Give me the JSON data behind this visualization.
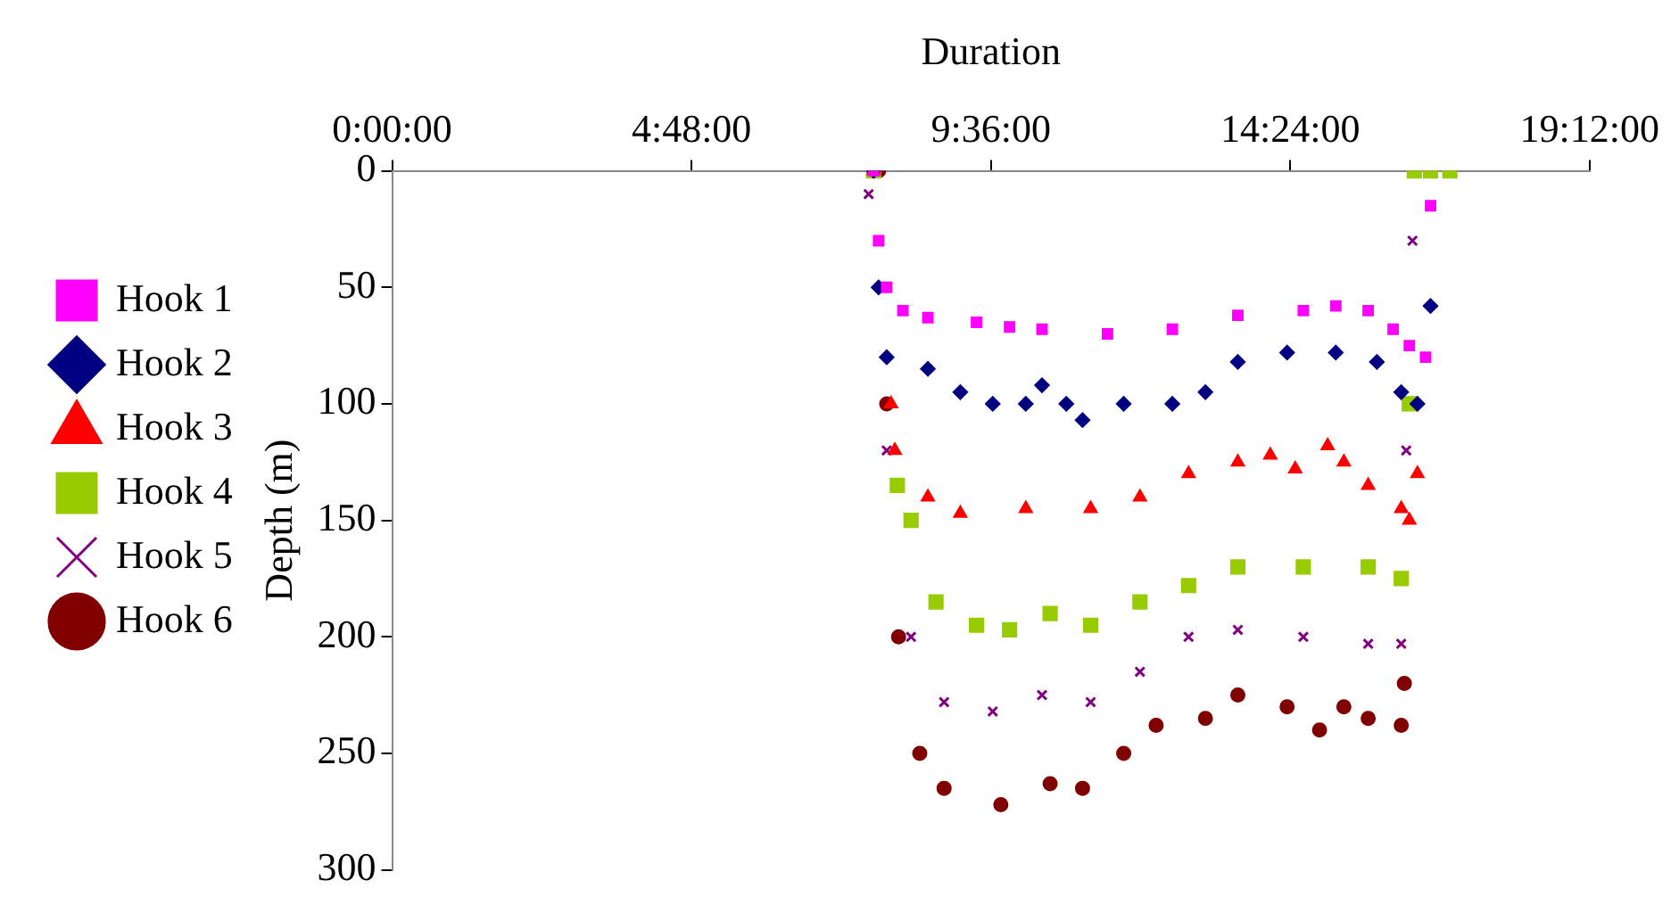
{
  "chart_data": {
    "type": "scatter",
    "xlabel": "Duration",
    "ylabel": "Depth (m)",
    "xlim": [
      0,
      19.2
    ],
    "xticks": [
      {
        "value": 0,
        "label": "0:00:00"
      },
      {
        "value": 4.8,
        "label": "4:48:00"
      },
      {
        "value": 9.6,
        "label": "9:36:00"
      },
      {
        "value": 14.4,
        "label": "14:24:00"
      },
      {
        "value": 19.2,
        "label": "19:12:00"
      }
    ],
    "ylim": [
      300,
      0
    ],
    "yticks": [
      0,
      50,
      100,
      150,
      200,
      250,
      300
    ],
    "grid": false,
    "legend": "left",
    "series": [
      {
        "name": "Hook 1",
        "color": "#ff00ff",
        "marker": "square",
        "x": [
          7.72,
          7.8,
          7.93,
          8.19,
          8.59,
          9.37,
          9.9,
          10.42,
          11.47,
          12.51,
          13.56,
          14.61,
          15.13,
          15.65,
          16.05,
          16.31,
          16.57,
          16.65
        ],
        "values": [
          0,
          30,
          50,
          60,
          63,
          65,
          67,
          68,
          70,
          68,
          62,
          60,
          58,
          60,
          68,
          75,
          80,
          15
        ]
      },
      {
        "name": "Hook 2",
        "color": "#000080",
        "marker": "diamond",
        "x": [
          7.72,
          7.8,
          7.93,
          8.59,
          9.11,
          9.63,
          10.16,
          10.42,
          10.81,
          11.07,
          11.73,
          12.51,
          13.04,
          13.56,
          14.35,
          15.13,
          15.79,
          16.18,
          16.44,
          16.65
        ],
        "values": [
          0,
          50,
          80,
          85,
          95,
          100,
          100,
          92,
          100,
          107,
          100,
          100,
          95,
          82,
          78,
          78,
          82,
          95,
          100,
          58
        ]
      },
      {
        "name": "Hook 3",
        "color": "#ff0000",
        "marker": "triangle",
        "x": [
          7.72,
          8.0,
          8.06,
          8.59,
          9.11,
          10.16,
          11.2,
          11.99,
          12.77,
          13.56,
          14.08,
          14.48,
          15.0,
          15.26,
          15.65,
          16.18,
          16.31,
          16.44
        ],
        "values": [
          0,
          100,
          120,
          140,
          147,
          145,
          145,
          140,
          130,
          125,
          122,
          128,
          118,
          125,
          135,
          145,
          150,
          130
        ]
      },
      {
        "name": "Hook 4",
        "color": "#99cc00",
        "marker": "square",
        "x": [
          7.72,
          8.1,
          8.32,
          8.72,
          9.37,
          9.9,
          10.55,
          11.2,
          11.99,
          12.77,
          13.56,
          14.61,
          15.65,
          16.18,
          16.31,
          16.39,
          16.65,
          16.96
        ],
        "values": [
          0,
          135,
          150,
          185,
          195,
          197,
          190,
          195,
          185,
          178,
          170,
          170,
          170,
          175,
          100,
          0,
          0,
          0
        ]
      },
      {
        "name": "Hook 5",
        "color": "#800080",
        "marker": "cross",
        "x": [
          7.64,
          7.93,
          8.32,
          8.85,
          9.63,
          10.42,
          11.2,
          11.99,
          12.77,
          13.56,
          14.61,
          15.65,
          16.18,
          16.26,
          16.36
        ],
        "values": [
          10,
          120,
          200,
          228,
          232,
          225,
          228,
          215,
          200,
          197,
          200,
          203,
          203,
          120,
          30
        ]
      },
      {
        "name": "Hook 6",
        "color": "#800000",
        "marker": "circle",
        "x": [
          7.8,
          7.93,
          8.12,
          8.46,
          8.85,
          9.76,
          10.55,
          11.07,
          11.73,
          12.25,
          13.04,
          13.56,
          14.35,
          14.87,
          15.26,
          15.65,
          16.18,
          16.23
        ],
        "values": [
          0,
          100,
          200,
          250,
          265,
          272,
          263,
          265,
          250,
          238,
          235,
          225,
          230,
          240,
          230,
          235,
          238,
          220
        ]
      }
    ]
  }
}
